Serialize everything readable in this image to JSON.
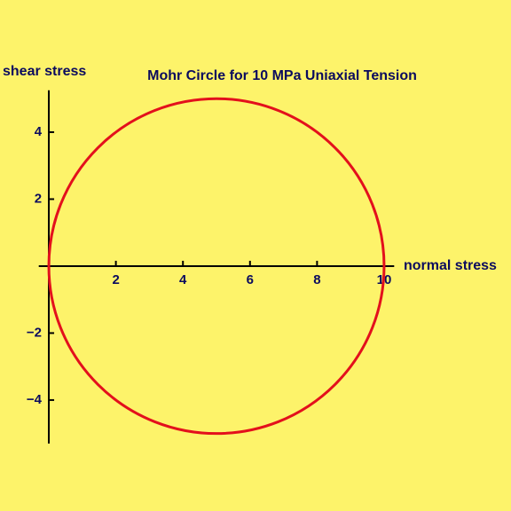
{
  "chart_data": {
    "type": "circle",
    "title": "Mohr Circle for 10 MPa Uniaxial Tension",
    "xlabel": "normal stress",
    "ylabel": "shear stress",
    "center": {
      "x": 5,
      "y": 0
    },
    "radius": 5,
    "color": "#e3101c",
    "xlim": [
      -0.3,
      10.3
    ],
    "ylim": [
      -5.3,
      5.25
    ],
    "xticks": [
      2,
      4,
      6,
      8,
      10
    ],
    "yticks": [
      {
        "value": -4,
        "label": "−4"
      },
      {
        "value": -2,
        "label": "−2"
      },
      2,
      4
    ]
  }
}
